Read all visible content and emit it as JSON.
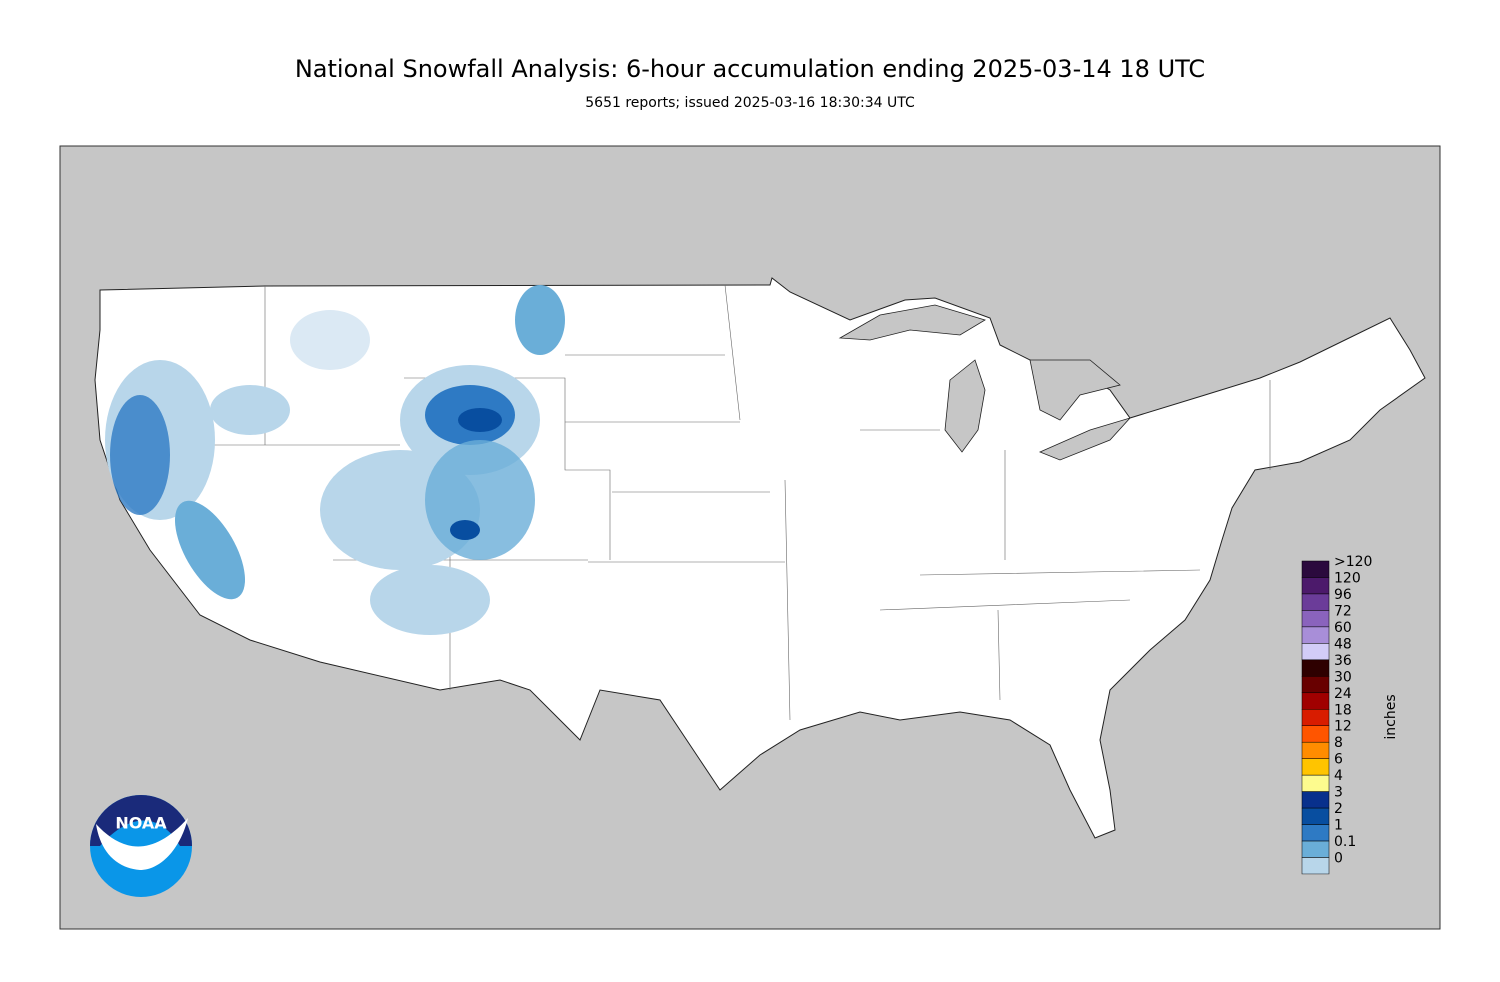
{
  "header": {
    "title": "National Snowfall Analysis: 6-hour accumulation ending 2025-03-14 18 UTC",
    "subtitle": "5651 reports; issued 2025-03-16 18:30:34 UTC"
  },
  "legend": {
    "unit": "inches",
    "items": [
      {
        "label": ">120",
        "color": "#2b0a3d"
      },
      {
        "label": "120",
        "color": "#4c1a6b"
      },
      {
        "label": "96",
        "color": "#6b3c99"
      },
      {
        "label": "72",
        "color": "#8a63bd"
      },
      {
        "label": "60",
        "color": "#a88ed8"
      },
      {
        "label": "48",
        "color": "#d2ccf7"
      },
      {
        "label": "36",
        "color": "#2e0000"
      },
      {
        "label": "30",
        "color": "#680000"
      },
      {
        "label": "24",
        "color": "#a00000"
      },
      {
        "label": "18",
        "color": "#d81c00"
      },
      {
        "label": "12",
        "color": "#ff5500"
      },
      {
        "label": "8",
        "color": "#ff8c00"
      },
      {
        "label": "6",
        "color": "#ffc400"
      },
      {
        "label": "4",
        "color": "#fdfb8e"
      },
      {
        "label": "3",
        "color": "#08308c"
      },
      {
        "label": "2",
        "color": "#084ea0"
      },
      {
        "label": "1",
        "color": "#2e7ac4"
      },
      {
        "label": "0.1",
        "color": "#6aaed8"
      },
      {
        "label": "0",
        "color": "#b8d6ea"
      }
    ]
  },
  "logo": {
    "text": "NOAA"
  }
}
